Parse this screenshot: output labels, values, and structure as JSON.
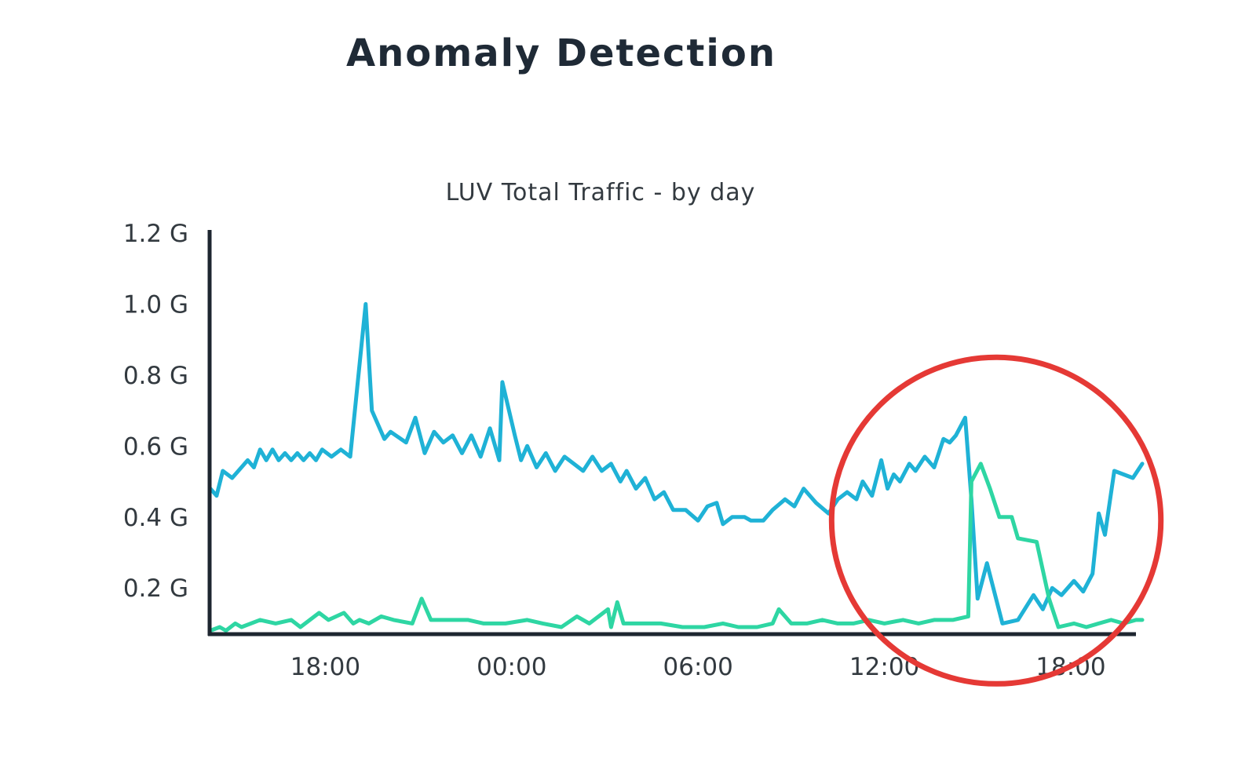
{
  "page_title": "Anomaly Detection",
  "chart_data": {
    "type": "line",
    "title": "LUV Total Traffic  - by day",
    "xlabel": "",
    "ylabel": "",
    "x_ticks": [
      {
        "label": "18:00",
        "x": 18
      },
      {
        "label": "00:00",
        "x": 24
      },
      {
        "label": "06:00",
        "x": 30
      },
      {
        "label": "12:00",
        "x": 36
      },
      {
        "label": "18:00",
        "x": 42
      }
    ],
    "xlim": [
      14.3,
      44.3
    ],
    "y_ticks": [
      {
        "label": "0.2 G",
        "y": 0.2
      },
      {
        "label": "0.4 G",
        "y": 0.4
      },
      {
        "label": "0.6 G",
        "y": 0.6
      },
      {
        "label": "0.8 G",
        "y": 0.8
      },
      {
        "label": "1.0 G",
        "y": 1.0
      },
      {
        "label": "1.2 G",
        "y": 1.2
      }
    ],
    "ylim": [
      0.07,
      1.2
    ],
    "grid": false,
    "annotations": [
      {
        "type": "circle",
        "center_x": 39.6,
        "center_y": 0.39,
        "radius_x": 5.3,
        "radius_y": 0.46,
        "color": "#e53935"
      }
    ],
    "series": [
      {
        "color": "#1fb2d6",
        "points": [
          [
            14.3,
            0.48
          ],
          [
            14.5,
            0.46
          ],
          [
            14.7,
            0.53
          ],
          [
            15.0,
            0.51
          ],
          [
            15.2,
            0.53
          ],
          [
            15.5,
            0.56
          ],
          [
            15.7,
            0.54
          ],
          [
            15.9,
            0.59
          ],
          [
            16.1,
            0.56
          ],
          [
            16.3,
            0.59
          ],
          [
            16.5,
            0.56
          ],
          [
            16.7,
            0.58
          ],
          [
            16.9,
            0.56
          ],
          [
            17.1,
            0.58
          ],
          [
            17.3,
            0.56
          ],
          [
            17.5,
            0.58
          ],
          [
            17.7,
            0.56
          ],
          [
            17.9,
            0.59
          ],
          [
            18.2,
            0.57
          ],
          [
            18.5,
            0.59
          ],
          [
            18.8,
            0.57
          ],
          [
            19.3,
            1.0
          ],
          [
            19.5,
            0.7
          ],
          [
            19.9,
            0.62
          ],
          [
            20.1,
            0.64
          ],
          [
            20.6,
            0.61
          ],
          [
            20.9,
            0.68
          ],
          [
            21.2,
            0.58
          ],
          [
            21.5,
            0.64
          ],
          [
            21.8,
            0.61
          ],
          [
            22.1,
            0.63
          ],
          [
            22.4,
            0.58
          ],
          [
            22.7,
            0.63
          ],
          [
            23.0,
            0.57
          ],
          [
            23.3,
            0.65
          ],
          [
            23.6,
            0.56
          ],
          [
            23.7,
            0.78
          ],
          [
            24.1,
            0.63
          ],
          [
            24.3,
            0.56
          ],
          [
            24.5,
            0.6
          ],
          [
            24.8,
            0.54
          ],
          [
            25.1,
            0.58
          ],
          [
            25.4,
            0.53
          ],
          [
            25.7,
            0.57
          ],
          [
            26.0,
            0.55
          ],
          [
            26.3,
            0.53
          ],
          [
            26.6,
            0.57
          ],
          [
            26.9,
            0.53
          ],
          [
            27.2,
            0.55
          ],
          [
            27.5,
            0.5
          ],
          [
            27.7,
            0.53
          ],
          [
            28.0,
            0.48
          ],
          [
            28.3,
            0.51
          ],
          [
            28.6,
            0.45
          ],
          [
            28.9,
            0.47
          ],
          [
            29.2,
            0.42
          ],
          [
            29.6,
            0.42
          ],
          [
            30.0,
            0.39
          ],
          [
            30.3,
            0.43
          ],
          [
            30.6,
            0.44
          ],
          [
            30.8,
            0.38
          ],
          [
            31.1,
            0.4
          ],
          [
            31.5,
            0.4
          ],
          [
            31.7,
            0.39
          ],
          [
            32.1,
            0.39
          ],
          [
            32.4,
            0.42
          ],
          [
            32.8,
            0.45
          ],
          [
            33.1,
            0.43
          ],
          [
            33.4,
            0.48
          ],
          [
            33.8,
            0.44
          ],
          [
            34.2,
            0.41
          ],
          [
            34.5,
            0.45
          ],
          [
            34.8,
            0.47
          ],
          [
            35.1,
            0.45
          ],
          [
            35.3,
            0.5
          ],
          [
            35.6,
            0.46
          ],
          [
            35.9,
            0.56
          ],
          [
            36.1,
            0.48
          ],
          [
            36.3,
            0.52
          ],
          [
            36.5,
            0.5
          ],
          [
            36.8,
            0.55
          ],
          [
            37.0,
            0.53
          ],
          [
            37.3,
            0.57
          ],
          [
            37.6,
            0.54
          ],
          [
            37.9,
            0.62
          ],
          [
            38.1,
            0.61
          ],
          [
            38.3,
            0.63
          ],
          [
            38.6,
            0.68
          ],
          [
            38.8,
            0.45
          ],
          [
            39.0,
            0.17
          ],
          [
            39.3,
            0.27
          ],
          [
            39.8,
            0.1
          ],
          [
            40.3,
            0.11
          ],
          [
            40.8,
            0.18
          ],
          [
            41.1,
            0.14
          ],
          [
            41.4,
            0.2
          ],
          [
            41.7,
            0.18
          ],
          [
            42.1,
            0.22
          ],
          [
            42.4,
            0.19
          ],
          [
            42.7,
            0.24
          ],
          [
            42.9,
            0.41
          ],
          [
            43.1,
            0.35
          ],
          [
            43.4,
            0.53
          ],
          [
            43.7,
            0.52
          ],
          [
            44.0,
            0.51
          ],
          [
            44.3,
            0.55
          ]
        ]
      },
      {
        "color": "#2ed6a3",
        "points": [
          [
            14.3,
            0.08
          ],
          [
            14.6,
            0.09
          ],
          [
            14.8,
            0.08
          ],
          [
            15.1,
            0.1
          ],
          [
            15.3,
            0.09
          ],
          [
            15.9,
            0.11
          ],
          [
            16.4,
            0.1
          ],
          [
            16.9,
            0.11
          ],
          [
            17.2,
            0.09
          ],
          [
            17.8,
            0.13
          ],
          [
            18.1,
            0.11
          ],
          [
            18.6,
            0.13
          ],
          [
            18.9,
            0.1
          ],
          [
            19.1,
            0.11
          ],
          [
            19.4,
            0.1
          ],
          [
            19.8,
            0.12
          ],
          [
            20.2,
            0.11
          ],
          [
            20.8,
            0.1
          ],
          [
            21.1,
            0.17
          ],
          [
            21.4,
            0.11
          ],
          [
            22.0,
            0.11
          ],
          [
            22.6,
            0.11
          ],
          [
            23.1,
            0.1
          ],
          [
            23.8,
            0.1
          ],
          [
            24.5,
            0.11
          ],
          [
            25.0,
            0.1
          ],
          [
            25.6,
            0.09
          ],
          [
            26.1,
            0.12
          ],
          [
            26.5,
            0.1
          ],
          [
            27.1,
            0.14
          ],
          [
            27.2,
            0.09
          ],
          [
            27.4,
            0.16
          ],
          [
            27.6,
            0.1
          ],
          [
            28.1,
            0.1
          ],
          [
            28.8,
            0.1
          ],
          [
            29.5,
            0.09
          ],
          [
            30.2,
            0.09
          ],
          [
            30.8,
            0.1
          ],
          [
            31.3,
            0.09
          ],
          [
            31.9,
            0.09
          ],
          [
            32.4,
            0.1
          ],
          [
            32.6,
            0.14
          ],
          [
            33.0,
            0.1
          ],
          [
            33.5,
            0.1
          ],
          [
            34.0,
            0.11
          ],
          [
            34.5,
            0.1
          ],
          [
            35.0,
            0.1
          ],
          [
            35.5,
            0.11
          ],
          [
            36.0,
            0.1
          ],
          [
            36.6,
            0.11
          ],
          [
            37.1,
            0.1
          ],
          [
            37.6,
            0.11
          ],
          [
            38.2,
            0.11
          ],
          [
            38.7,
            0.12
          ],
          [
            38.8,
            0.5
          ],
          [
            39.1,
            0.55
          ],
          [
            39.4,
            0.48
          ],
          [
            39.7,
            0.4
          ],
          [
            40.1,
            0.4
          ],
          [
            40.3,
            0.34
          ],
          [
            40.9,
            0.33
          ],
          [
            41.3,
            0.17
          ],
          [
            41.6,
            0.09
          ],
          [
            42.1,
            0.1
          ],
          [
            42.5,
            0.09
          ],
          [
            42.9,
            0.1
          ],
          [
            43.3,
            0.11
          ],
          [
            43.7,
            0.1
          ],
          [
            44.1,
            0.11
          ],
          [
            44.3,
            0.11
          ]
        ]
      }
    ]
  }
}
